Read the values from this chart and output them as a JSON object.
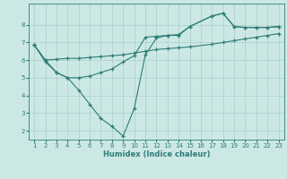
{
  "xlabel": "Humidex (Indice chaleur)",
  "ylabel": "",
  "bg_color": "#cce8e5",
  "line_color": "#2e7d76",
  "grid_color": "#aacfcc",
  "xlim": [
    0.5,
    23.5
  ],
  "ylim": [
    1.5,
    9.2
  ],
  "xticks": [
    1,
    2,
    3,
    4,
    5,
    6,
    7,
    8,
    9,
    10,
    11,
    12,
    13,
    14,
    15,
    16,
    17,
    18,
    19,
    20,
    21,
    22,
    23
  ],
  "yticks": [
    2,
    3,
    4,
    5,
    6,
    7,
    8
  ],
  "line1_x": [
    1,
    2,
    3,
    4,
    5,
    6,
    7,
    8,
    9,
    10,
    11,
    12,
    13,
    14,
    15,
    17,
    18,
    19,
    20,
    21,
    22,
    23
  ],
  "line1_y": [
    6.85,
    5.9,
    5.3,
    5.0,
    4.3,
    3.5,
    2.7,
    2.25,
    1.7,
    3.25,
    6.3,
    7.25,
    7.4,
    7.4,
    7.9,
    8.5,
    8.65,
    7.9,
    7.85,
    7.85,
    7.85,
    7.9
  ],
  "line2_x": [
    1,
    2,
    3,
    4,
    5,
    6,
    7,
    8,
    9,
    10,
    11,
    12,
    13,
    14,
    15,
    17,
    18,
    19,
    20,
    21,
    22,
    23
  ],
  "line2_y": [
    6.85,
    6.0,
    6.05,
    6.1,
    6.1,
    6.15,
    6.2,
    6.25,
    6.3,
    6.4,
    6.5,
    6.6,
    6.65,
    6.7,
    6.75,
    6.9,
    7.0,
    7.1,
    7.2,
    7.3,
    7.4,
    7.5
  ],
  "line3_x": [
    1,
    2,
    3,
    4,
    5,
    6,
    7,
    8,
    9,
    10,
    11,
    12,
    13,
    14,
    15,
    17,
    18,
    19,
    20,
    21,
    22,
    23
  ],
  "line3_y": [
    6.85,
    6.0,
    5.3,
    5.0,
    5.0,
    5.1,
    5.3,
    5.5,
    5.9,
    6.25,
    7.3,
    7.35,
    7.4,
    7.45,
    7.9,
    8.5,
    8.65,
    7.9,
    7.85,
    7.85,
    7.85,
    7.9
  ]
}
